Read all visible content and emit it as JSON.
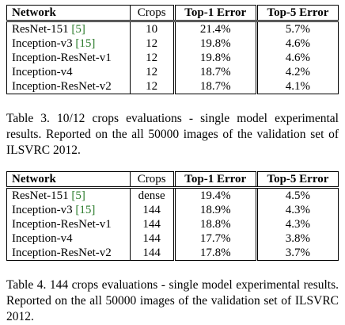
{
  "table1": {
    "headers": {
      "network": "Network",
      "crops": "Crops",
      "top1": "Top-1 Error",
      "top5": "Top-5 Error"
    },
    "rows": [
      {
        "network": "ResNet-151",
        "ref": "[5]",
        "crops": "10",
        "top1": "21.4%",
        "top5": "5.7%"
      },
      {
        "network": "Inception-v3",
        "ref": "[15]",
        "crops": "12",
        "top1": "19.8%",
        "top5": "4.6%"
      },
      {
        "network": "Inception-ResNet-v1",
        "ref": "",
        "crops": "12",
        "top1": "19.8%",
        "top5": "4.6%"
      },
      {
        "network": "Inception-v4",
        "ref": "",
        "crops": "12",
        "top1": "18.7%",
        "top5": "4.2%"
      },
      {
        "network": "Inception-ResNet-v2",
        "ref": "",
        "crops": "12",
        "top1": "18.7%",
        "top5": "4.1%"
      }
    ],
    "caption": "Table 3. 10/12 crops evaluations - single model experimental results. Reported on the all 50000 images of the validation set of ILSVRC 2012."
  },
  "table2": {
    "headers": {
      "network": "Network",
      "crops": "Crops",
      "top1": "Top-1 Error",
      "top5": "Top-5 Error"
    },
    "rows": [
      {
        "network": "ResNet-151",
        "ref": "[5]",
        "crops": "dense",
        "top1": "19.4%",
        "top5": "4.5%"
      },
      {
        "network": "Inception-v3",
        "ref": "[15]",
        "crops": "144",
        "top1": "18.9%",
        "top5": "4.3%"
      },
      {
        "network": "Inception-ResNet-v1",
        "ref": "",
        "crops": "144",
        "top1": "18.8%",
        "top5": "4.3%"
      },
      {
        "network": "Inception-v4",
        "ref": "",
        "crops": "144",
        "top1": "17.7%",
        "top5": "3.8%"
      },
      {
        "network": "Inception-ResNet-v2",
        "ref": "",
        "crops": "144",
        "top1": "17.8%",
        "top5": "3.7%"
      }
    ],
    "caption": "Table 4. 144 crops evaluations - single model experimental results. Reported on the all 50000 images of the validation set of ILSVRC 2012."
  }
}
